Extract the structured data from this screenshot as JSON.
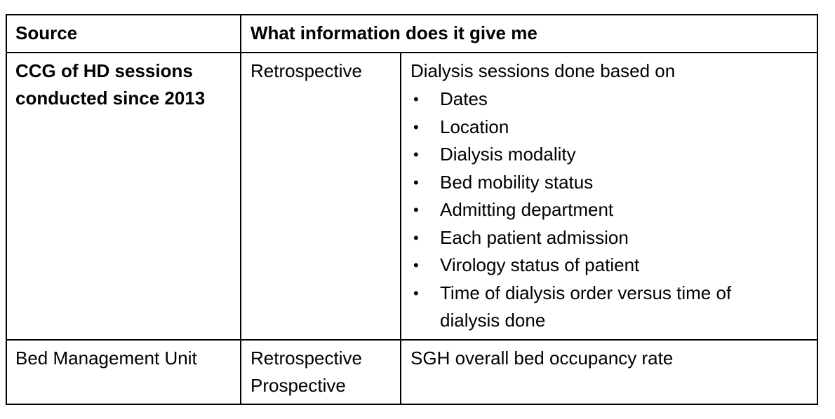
{
  "header": {
    "source": "Source",
    "info": "What information does it give me"
  },
  "rows": [
    {
      "source_line1": "CCG of HD sessions",
      "source_line2": "conducted since 2013",
      "type_line1": "Retrospective",
      "type_line2": "",
      "info_intro": "Dialysis sessions done based on",
      "bullets": [
        "Dates",
        "Location",
        "Dialysis modality",
        "Bed mobility status",
        "Admitting department",
        "Each patient admission",
        "Virology status of patient",
        "Time of dialysis order versus time of dialysis done"
      ]
    },
    {
      "source_line1": "Bed Management Unit",
      "source_line2": "",
      "type_line1": "Retrospective",
      "type_line2": "Prospective",
      "info_intro": "SGH overall bed occupancy rate",
      "bullets": []
    }
  ],
  "bullet_glyph": "•"
}
